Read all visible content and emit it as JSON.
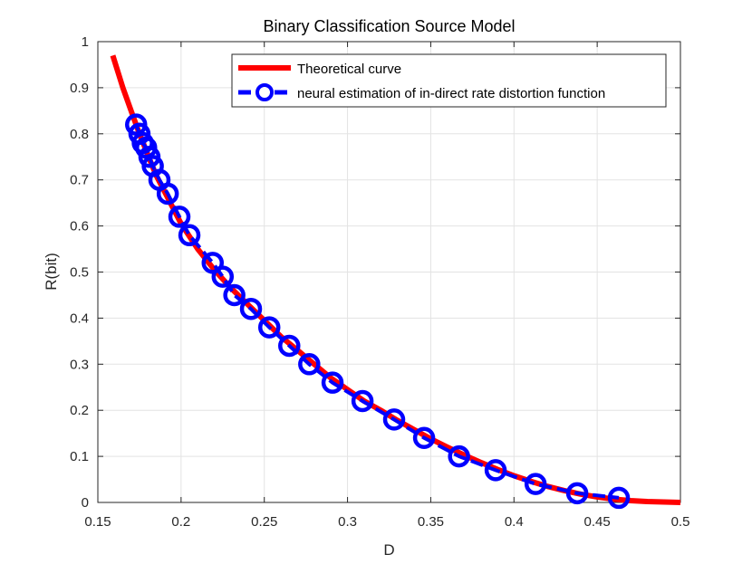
{
  "chart_data": {
    "type": "line",
    "title": "Binary Classification Source Model",
    "xlabel": "D",
    "ylabel": "R(bit)",
    "xlim": [
      0.15,
      0.5
    ],
    "ylim": [
      0,
      1
    ],
    "xticks": [
      0.15,
      0.2,
      0.25,
      0.3,
      0.35,
      0.4,
      0.45,
      0.5
    ],
    "xtick_labels": [
      "0.15",
      "0.2",
      "0.25",
      "0.3",
      "0.35",
      "0.4",
      "0.45",
      "0.5"
    ],
    "yticks": [
      0,
      0.1,
      0.2,
      0.3,
      0.4,
      0.5,
      0.6,
      0.7,
      0.8,
      0.9,
      1
    ],
    "ytick_labels": [
      "0",
      "0.1",
      "0.2",
      "0.3",
      "0.4",
      "0.5",
      "0.6",
      "0.7",
      "0.8",
      "0.9",
      "1"
    ],
    "grid": true,
    "legend_position": "top-right",
    "series": [
      {
        "name": "Theoretical curve",
        "style": "solid line",
        "color": "#ff0000",
        "x": [
          0.159,
          0.165,
          0.17,
          0.175,
          0.18,
          0.185,
          0.19,
          0.195,
          0.2,
          0.21,
          0.22,
          0.23,
          0.24,
          0.25,
          0.26,
          0.27,
          0.28,
          0.29,
          0.3,
          0.31,
          0.32,
          0.33,
          0.34,
          0.35,
          0.36,
          0.37,
          0.38,
          0.39,
          0.4,
          0.41,
          0.42,
          0.43,
          0.44,
          0.45,
          0.46,
          0.47,
          0.48,
          0.49,
          0.5
        ],
        "y": [
          0.97,
          0.9,
          0.85,
          0.8,
          0.755,
          0.71,
          0.675,
          0.64,
          0.605,
          0.55,
          0.505,
          0.465,
          0.43,
          0.395,
          0.36,
          0.33,
          0.3,
          0.27,
          0.245,
          0.22,
          0.2,
          0.178,
          0.158,
          0.138,
          0.12,
          0.103,
          0.087,
          0.072,
          0.058,
          0.046,
          0.035,
          0.026,
          0.018,
          0.012,
          0.007,
          0.004,
          0.002,
          0.001,
          0.0
        ]
      },
      {
        "name": "neural estimation of in-direct rate distortion function",
        "style": "dashed line with circle markers",
        "color": "#0000ff",
        "x": [
          0.173,
          0.175,
          0.177,
          0.179,
          0.181,
          0.183,
          0.187,
          0.192,
          0.199,
          0.205,
          0.219,
          0.225,
          0.232,
          0.242,
          0.253,
          0.265,
          0.277,
          0.291,
          0.309,
          0.328,
          0.346,
          0.367,
          0.389,
          0.413,
          0.438,
          0.463
        ],
        "y": [
          0.82,
          0.8,
          0.78,
          0.77,
          0.75,
          0.73,
          0.7,
          0.67,
          0.62,
          0.58,
          0.52,
          0.49,
          0.45,
          0.42,
          0.38,
          0.34,
          0.3,
          0.26,
          0.22,
          0.18,
          0.14,
          0.1,
          0.07,
          0.04,
          0.02,
          0.01
        ]
      }
    ]
  }
}
